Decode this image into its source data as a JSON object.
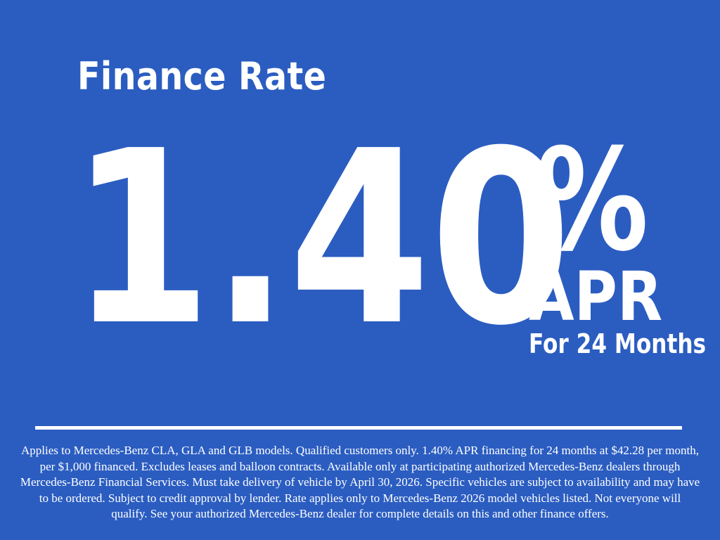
{
  "page": {
    "background_color": "#2B5DC1",
    "text_color": "#FFFFFF"
  },
  "offer": {
    "title": "Finance Rate",
    "rate_value": "1.40",
    "rate_symbol": "%",
    "rate_unit": "APR",
    "term": "For 24 Months",
    "disclaimer_lines": {
      "0": "Applies to Mercedes-Benz CLA, GLA and GLB models. Qualified customers only. 1.40% APR financing for 24 months at $42.28 per month,",
      "1": "per $1,000 financed. Excludes leases and balloon contracts. Available only at participating authorized Mercedes-Benz dealers through",
      "2": "Mercedes-Benz Financial Services. Must take delivery of vehicle by April 30, 2026. Specific vehicles are subject to availability and may have",
      "3": "to be ordered. Subject to credit approval by lender. Rate applies only to Mercedes-Benz 2026 model vehicles listed. Not everyone will",
      "4": "qualify. See your authorized Mercedes-Benz dealer for complete details on this and other finance offers."
    }
  }
}
